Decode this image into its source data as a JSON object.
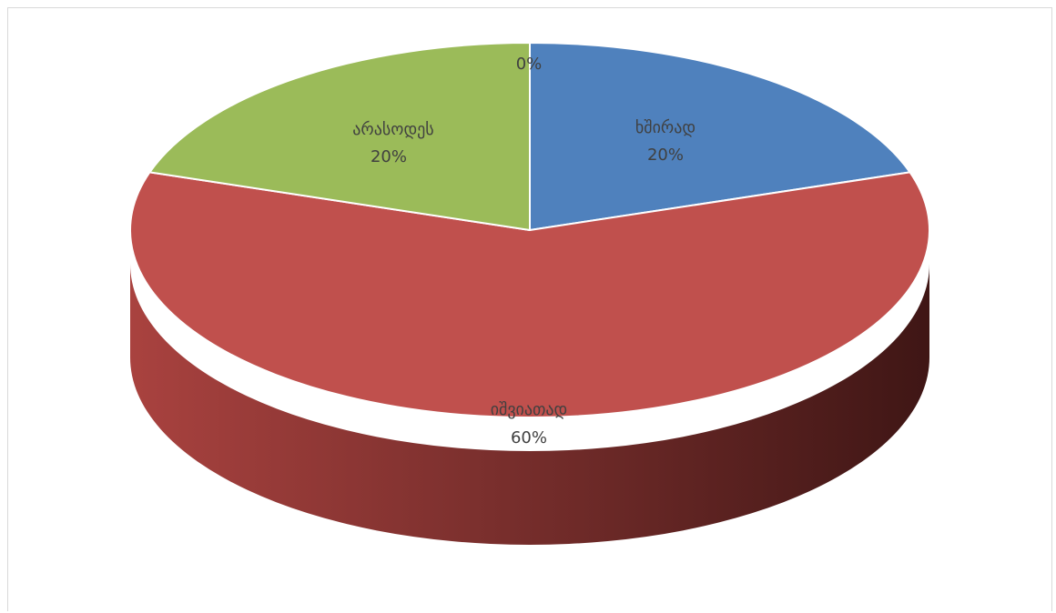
{
  "chart_data": {
    "type": "pie",
    "style": "3d",
    "title": "",
    "categories": [
      "ხშირად",
      "იშვიათად",
      "არასოდეს",
      ""
    ],
    "values": [
      20,
      60,
      20,
      0
    ],
    "labels": [
      {
        "name": "ხშირად",
        "value": "20%"
      },
      {
        "name": "იშვიათად",
        "value": "60%"
      },
      {
        "name": "არასოდეს",
        "value": "20%"
      },
      {
        "name": "",
        "value": "0%"
      }
    ],
    "colors": {
      "ხშირად": "#4f81bd",
      "იშვიათად": "#c0504d",
      "არასოდეს": "#9bbb59"
    },
    "legend": "none"
  }
}
